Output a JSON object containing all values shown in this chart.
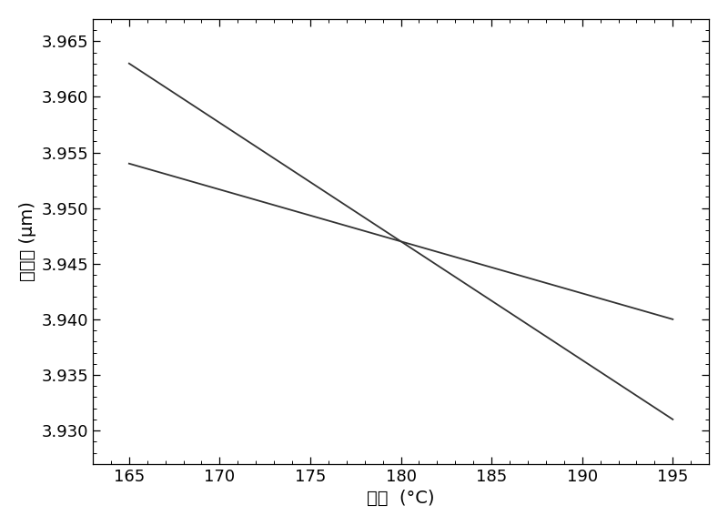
{
  "line1": {
    "x": [
      165,
      195
    ],
    "y": [
      3.963,
      3.931
    ],
    "color": "#333333",
    "linewidth": 1.3
  },
  "line2": {
    "x": [
      165,
      195
    ],
    "y": [
      3.954,
      3.94
    ],
    "color": "#333333",
    "linewidth": 1.3
  },
  "xlim": [
    163,
    197
  ],
  "ylim": [
    3.927,
    3.967
  ],
  "xticks": [
    165,
    170,
    175,
    180,
    185,
    190,
    195
  ],
  "yticks": [
    3.93,
    3.935,
    3.94,
    3.945,
    3.95,
    3.955,
    3.96,
    3.965
  ],
  "xlabel": "温度  (°C)",
  "ylabel": "闭置光 (μm)",
  "background_color": "#ffffff",
  "label_fontsize": 14,
  "tick_fontsize": 13
}
